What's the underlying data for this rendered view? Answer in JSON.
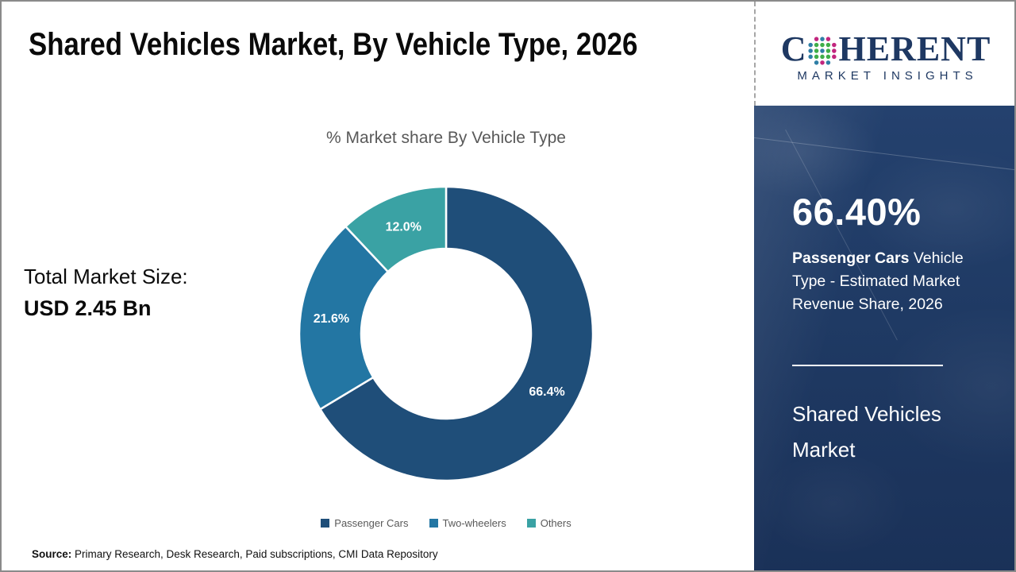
{
  "header": {
    "title": "Shared Vehicles Market, By Vehicle Type, 2026"
  },
  "logo": {
    "brand_c": "C",
    "brand_rest": "HERENT",
    "subtitle": "MARKET INSIGHTS",
    "navy_color": "#1e3862",
    "globe_dot_colors": {
      "outer_magenta": "#c2267e",
      "outer_teal": "#2f7fa6",
      "inner_green": "#3fae49"
    }
  },
  "left_panel": {
    "total_label": "Total Market Size:",
    "total_value": "USD 2.45 Bn"
  },
  "chart_data": {
    "type": "pie",
    "subtype": "donut",
    "title": "% Market share By Vehicle Type",
    "categories": [
      "Passenger Cars",
      "Two-wheelers",
      "Others"
    ],
    "values": [
      66.4,
      21.6,
      12.0
    ],
    "slice_labels": [
      "66.4%",
      "21.6%",
      "12.0%"
    ],
    "colors": [
      "#1F4E79",
      "#2376A3",
      "#3AA2A4"
    ],
    "start_angle_deg": 0,
    "direction": "clockwise",
    "inner_radius_ratio": 0.58,
    "slice_label_color": "#FFFFFF",
    "legend_position": "bottom",
    "title_color": "#595959"
  },
  "sidebar": {
    "stat_value": "66.40%",
    "desc_bold": "Passenger Cars",
    "desc_rest": " Vehicle Type - Estimated Market Revenue Share, 2026",
    "market_line1": "Shared Vehicles",
    "market_line2": "Market",
    "bg_color": "#1F3A64"
  },
  "footer": {
    "source_label": "Source:",
    "source_text": " Primary Research, Desk Research, Paid subscriptions, CMI Data Repository"
  }
}
